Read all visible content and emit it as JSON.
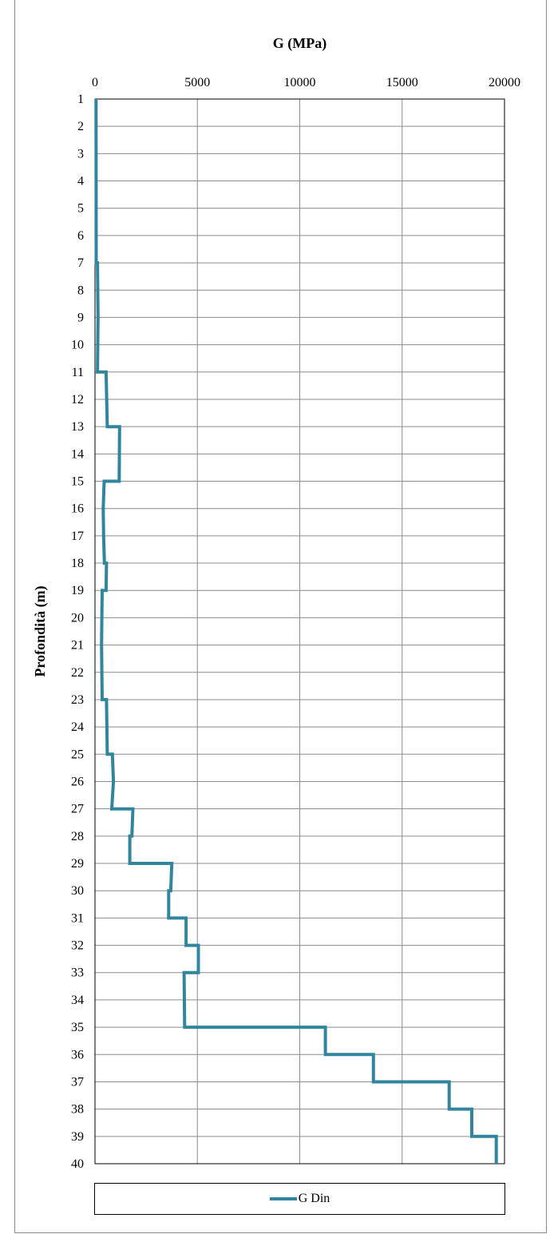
{
  "chart_data": {
    "type": "line",
    "title": "G (MPa)",
    "xlabel": "G (MPa)",
    "ylabel": "Profondità (m)",
    "xlim": [
      0,
      20000
    ],
    "ylim": [
      1,
      40
    ],
    "x_ticks": [
      "0",
      "5000",
      "10000",
      "15000",
      "20000"
    ],
    "y_ticks": [
      "1",
      "2",
      "3",
      "4",
      "5",
      "6",
      "7",
      "8",
      "9",
      "10",
      "11",
      "12",
      "13",
      "14",
      "15",
      "16",
      "17",
      "18",
      "19",
      "20",
      "21",
      "22",
      "23",
      "24",
      "25",
      "26",
      "27",
      "28",
      "29",
      "30",
      "31",
      "32",
      "33",
      "34",
      "35",
      "36",
      "37",
      "38",
      "39",
      "40"
    ],
    "grid": true,
    "legend_position": "bottom",
    "series": [
      {
        "name": "G Din",
        "color": "#31859c",
        "points": [
          [
            50,
            1
          ],
          [
            60,
            7
          ],
          [
            120,
            7
          ],
          [
            150,
            9
          ],
          [
            120,
            11
          ],
          [
            540,
            11
          ],
          [
            600,
            13
          ],
          [
            1200,
            13
          ],
          [
            1180,
            15
          ],
          [
            450,
            15
          ],
          [
            400,
            16
          ],
          [
            420,
            17
          ],
          [
            460,
            18
          ],
          [
            560,
            18
          ],
          [
            540,
            19
          ],
          [
            350,
            19
          ],
          [
            320,
            21
          ],
          [
            350,
            23
          ],
          [
            560,
            23
          ],
          [
            600,
            25
          ],
          [
            850,
            25
          ],
          [
            900,
            26
          ],
          [
            820,
            27
          ],
          [
            1850,
            27
          ],
          [
            1800,
            28
          ],
          [
            1700,
            28
          ],
          [
            1700,
            29
          ],
          [
            3750,
            29
          ],
          [
            3700,
            30
          ],
          [
            3600,
            30
          ],
          [
            3600,
            31
          ],
          [
            4450,
            31
          ],
          [
            4450,
            32
          ],
          [
            5050,
            32
          ],
          [
            5050,
            33
          ],
          [
            4350,
            33
          ],
          [
            4380,
            35
          ],
          [
            11250,
            35
          ],
          [
            11250,
            36
          ],
          [
            13600,
            36
          ],
          [
            13600,
            37
          ],
          [
            17300,
            37
          ],
          [
            17300,
            38
          ],
          [
            18400,
            38
          ],
          [
            18400,
            39
          ],
          [
            19600,
            39
          ],
          [
            19600,
            40
          ]
        ]
      }
    ]
  }
}
